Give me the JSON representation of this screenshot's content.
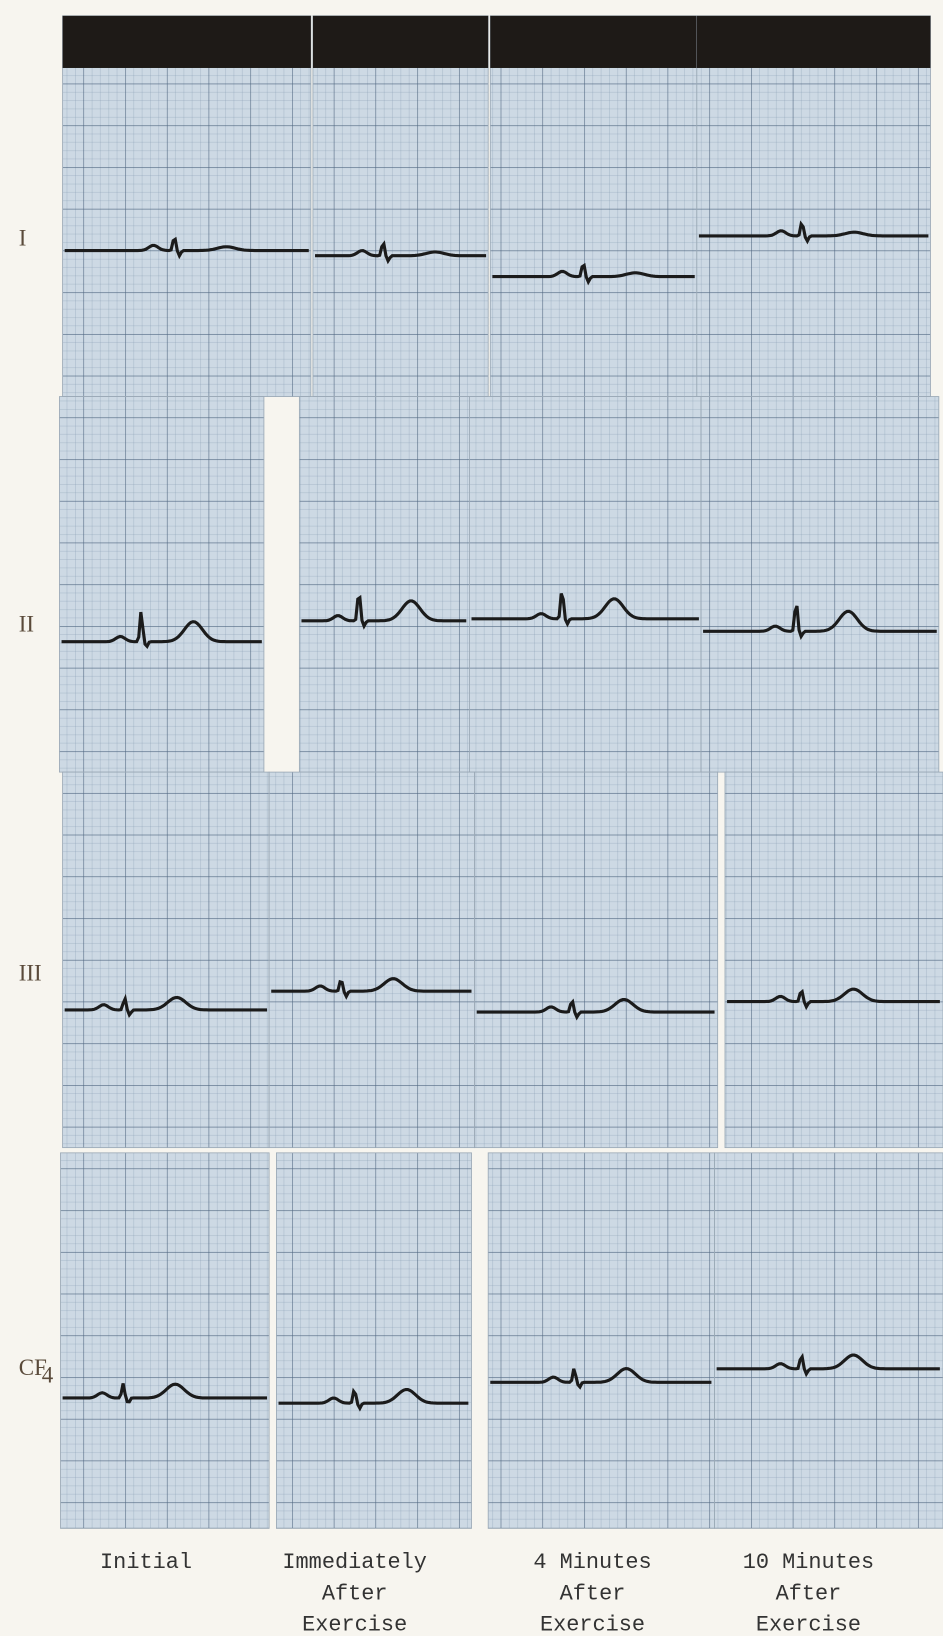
{
  "leads": [
    {
      "label": "I"
    },
    {
      "label": "II"
    },
    {
      "label": "III"
    },
    {
      "label": "CF",
      "subscript": "4"
    }
  ],
  "columns": [
    {
      "lines": [
        "Initial"
      ]
    },
    {
      "lines": [
        "Immediately",
        "After",
        "Exercise"
      ]
    },
    {
      "lines": [
        "4 Minutes",
        "After",
        "Exercise"
      ]
    },
    {
      "lines": [
        "10 Minutes",
        "After",
        "Exercise"
      ]
    }
  ]
}
